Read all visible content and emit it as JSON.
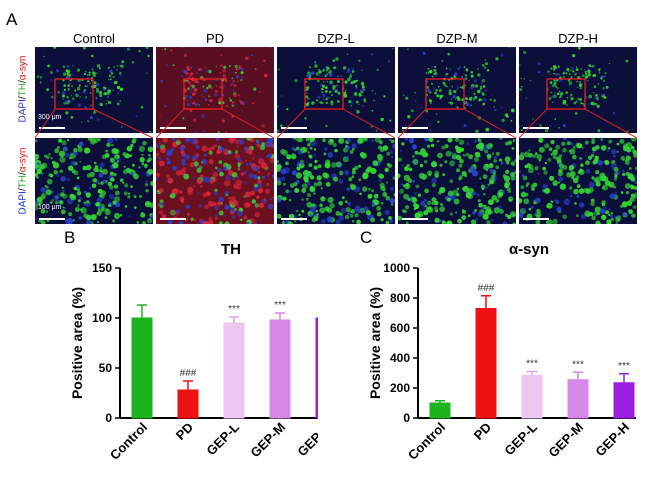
{
  "panel_labels": {
    "a": "A",
    "b": "B",
    "c": "C"
  },
  "micrograph": {
    "columns": [
      "Control",
      "PD",
      "DZP-L",
      "DZP-M",
      "DZP-H"
    ],
    "stain_label": {
      "dapi": "DAPI",
      "sep1": "/",
      "th": "TH",
      "sep2": "/",
      "asyn": "α-syn"
    },
    "scale_top": "300 μm",
    "scale_bottom": "100 μm",
    "colors": {
      "dapi": "#2233cc",
      "th": "#22bb22",
      "asyn": "#dd1111"
    }
  },
  "chart_data": [
    {
      "type": "bar",
      "title": "TH",
      "ylabel": "Positive area (%)",
      "xlabel": "",
      "ylim": [
        0,
        150
      ],
      "yticks": [
        0,
        50,
        100,
        150
      ],
      "categories": [
        "Control",
        "PD",
        "GEP-L",
        "GEP-M",
        "GEP-H"
      ],
      "values": [
        100,
        28,
        95,
        98,
        100
      ],
      "errors": [
        13,
        9,
        6,
        7,
        7
      ],
      "annotations": [
        "",
        "###",
        "***",
        "***",
        "***"
      ],
      "colors": [
        "#1db31d",
        "#ee1111",
        "#efc6f2",
        "#d787e8",
        "#9b1ee0"
      ],
      "grid": false
    },
    {
      "type": "bar",
      "title": "α-syn",
      "ylabel": "Positive area (%)",
      "xlabel": "",
      "ylim": [
        0,
        1000
      ],
      "yticks": [
        0,
        200,
        400,
        600,
        800,
        1000
      ],
      "categories": [
        "Control",
        "PD",
        "GEP-L",
        "GEP-M",
        "GEP-H"
      ],
      "values": [
        100,
        730,
        285,
        255,
        235
      ],
      "errors": [
        15,
        85,
        25,
        50,
        60
      ],
      "annotations": [
        "",
        "###",
        "***",
        "***",
        "***"
      ],
      "colors": [
        "#1db31d",
        "#ee1111",
        "#efc6f2",
        "#d787e8",
        "#9b1ee0"
      ],
      "grid": false
    }
  ]
}
